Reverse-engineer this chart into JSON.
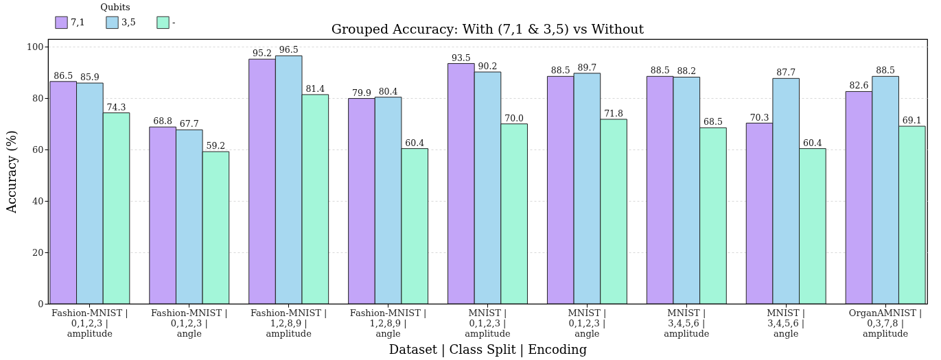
{
  "chart_data": {
    "type": "bar",
    "title": "Grouped Accuracy: With (7,1 & 3,5) vs Without",
    "xlabel": "Dataset | Class Split | Encoding",
    "ylabel": "Accuracy (%)",
    "legend_title": "Qubits",
    "categories": [
      "Fashion-MNIST |\n0,1,2,3 |\namplitude",
      "Fashion-MNIST |\n0,1,2,3 |\nangle",
      "Fashion-MNIST |\n1,2,8,9 |\namplitude",
      "Fashion-MNIST |\n1,2,8,9 |\nangle",
      "MNIST |\n0,1,2,3 |\namplitude",
      "MNIST |\n0,1,2,3 |\nangle",
      "MNIST |\n3,4,5,6 |\namplitude",
      "MNIST |\n3,4,5,6 |\nangle",
      "OrganAMNIST |\n0,3,7,8 |\namplitude"
    ],
    "series": [
      {
        "name": "7,1",
        "color": "#c3a5f8",
        "values": [
          86.5,
          68.8,
          95.2,
          79.9,
          93.5,
          88.5,
          88.5,
          70.3,
          82.6
        ],
        "value_labels": [
          "86.5",
          "68.8",
          "95.2",
          "79.9",
          "93.5",
          "88.5",
          "88.5",
          "70.3",
          "82.6"
        ]
      },
      {
        "name": "3,5",
        "color": "#a7d8f0",
        "values": [
          85.9,
          67.7,
          96.5,
          80.4,
          90.2,
          89.7,
          88.2,
          87.7,
          88.5
        ],
        "value_labels": [
          "85.9",
          "67.7",
          "96.5",
          "80.4",
          "90.2",
          "89.7",
          "88.2",
          "87.7",
          "88.5"
        ]
      },
      {
        "name": "-",
        "color": "#a3f6d9",
        "values": [
          74.3,
          59.2,
          81.4,
          60.4,
          70.0,
          71.8,
          68.5,
          60.4,
          69.1
        ],
        "value_labels": [
          "74.3",
          "59.2",
          "81.4",
          "60.4",
          "70.0",
          "71.8",
          "68.5",
          "60.4",
          "69.1"
        ]
      }
    ],
    "ylim": [
      0,
      103
    ],
    "yticks": [
      0,
      20,
      40,
      60,
      80,
      100
    ],
    "grid": "y",
    "legend": "top left"
  }
}
